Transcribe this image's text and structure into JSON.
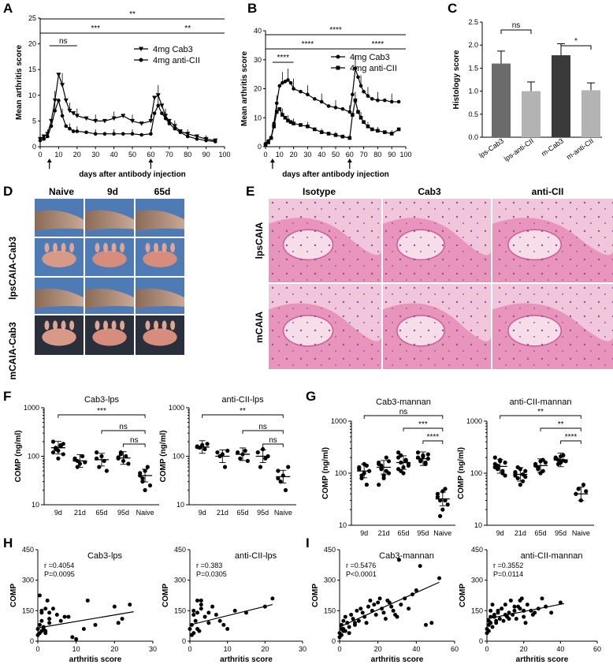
{
  "figure": {
    "panels": {
      "A": "A",
      "B": "B",
      "C": "C",
      "D": "D",
      "E": "E",
      "F": "F",
      "G": "G",
      "H": "H",
      "I": "I"
    }
  },
  "panelD": {
    "columns": [
      "Naive",
      "9d",
      "65d"
    ],
    "rows": [
      "lpsCAIA-Cab3",
      "mCAIA-Cab3"
    ]
  },
  "panelE": {
    "columns": [
      "Isotype",
      "Cab3",
      "anti-CII"
    ],
    "rows": [
      "lpsCAIA",
      "mCAIA"
    ]
  },
  "chart_data": [
    {
      "panel": "A",
      "type": "line",
      "ylabel": "Mean arthritis score",
      "xlabel": "days after antibody injection",
      "xlim": [
        0,
        100
      ],
      "ylim": [
        0,
        25
      ],
      "xticks": [
        0,
        10,
        20,
        30,
        40,
        50,
        60,
        70,
        80,
        90,
        100
      ],
      "yticks": [
        0,
        5,
        10,
        15,
        20,
        25
      ],
      "arrows_at": [
        5,
        60
      ],
      "series": [
        {
          "name": "4mg Cab3",
          "marker": "triangle-down",
          "x": [
            0,
            2,
            4,
            6,
            8,
            10,
            12,
            14,
            16,
            18,
            20,
            25,
            30,
            35,
            40,
            45,
            50,
            55,
            60,
            62,
            64,
            66,
            68,
            70,
            73,
            76,
            80,
            85,
            90,
            95
          ],
          "y": [
            1.5,
            2,
            2.5,
            5,
            9,
            14,
            12,
            9,
            7,
            6.5,
            6,
            5.5,
            5,
            5,
            5.5,
            6,
            5,
            4.5,
            5,
            9.5,
            10,
            8,
            6,
            5,
            4,
            3,
            2.5,
            2,
            1.5,
            1.2
          ]
        },
        {
          "name": "4mg anti-CII",
          "marker": "circle",
          "x": [
            0,
            2,
            4,
            6,
            8,
            10,
            12,
            14,
            16,
            18,
            20,
            25,
            30,
            35,
            40,
            45,
            50,
            55,
            60,
            62,
            64,
            66,
            68,
            70,
            73,
            76,
            80,
            85,
            90,
            95
          ],
          "y": [
            1.2,
            1.5,
            2,
            4,
            7,
            9,
            6,
            4,
            3.5,
            3,
            3,
            2.8,
            2.5,
            2.5,
            2.5,
            2.5,
            2.5,
            2.3,
            2.5,
            6.5,
            8,
            6.5,
            5.5,
            4.5,
            3.5,
            2.8,
            2,
            1.5,
            1.2,
            1
          ]
        }
      ],
      "significance": [
        "**",
        "***",
        "**",
        "ns"
      ]
    },
    {
      "panel": "B",
      "type": "line",
      "ylabel": "Mean arthritis score",
      "xlabel": "days after antibody injection",
      "xlim": [
        0,
        100
      ],
      "ylim": [
        0,
        40
      ],
      "xticks": [
        0,
        10,
        20,
        30,
        40,
        50,
        60,
        70,
        80,
        90,
        100
      ],
      "yticks": [
        0,
        10,
        20,
        30,
        40
      ],
      "arrows_at": [
        5,
        60
      ],
      "series": [
        {
          "name": "4mg Cab3",
          "marker": "circle",
          "x": [
            0,
            2,
            4,
            6,
            8,
            10,
            12,
            14,
            16,
            18,
            20,
            25,
            30,
            35,
            40,
            45,
            50,
            55,
            60,
            62,
            64,
            66,
            68,
            70,
            73,
            76,
            80,
            85,
            90,
            95
          ],
          "y": [
            1,
            2,
            3,
            8,
            15,
            21,
            22,
            22.5,
            23,
            22,
            20,
            19,
            18,
            16.5,
            15.5,
            14,
            13.5,
            13,
            12,
            18,
            27,
            24,
            21,
            19,
            17.5,
            16.5,
            16,
            16,
            15.5,
            15.5
          ]
        },
        {
          "name": "4mg anti-CII",
          "marker": "square",
          "x": [
            0,
            2,
            4,
            6,
            8,
            10,
            12,
            14,
            16,
            18,
            20,
            25,
            30,
            35,
            40,
            45,
            50,
            55,
            60,
            62,
            64,
            66,
            68,
            70,
            73,
            76,
            80,
            85,
            90,
            95
          ],
          "y": [
            0.8,
            1.5,
            3,
            7,
            12,
            13,
            11,
            10,
            9,
            8.5,
            8,
            7.5,
            7,
            6,
            5,
            4.5,
            4,
            3.5,
            3,
            11,
            16,
            12,
            10,
            8.5,
            7,
            6,
            5.5,
            5,
            4.5,
            6
          ]
        }
      ],
      "significance": [
        "****",
        "****",
        "****",
        "****"
      ]
    },
    {
      "panel": "C",
      "type": "bar",
      "ylabel": "Histology score",
      "ylim": [
        0,
        2.5
      ],
      "yticks": [
        0,
        0.5,
        1.0,
        1.5,
        2.0,
        2.5
      ],
      "yticklabels": [
        "0.0",
        "0.5",
        "1.0",
        "1.5",
        "2.0",
        "2.5"
      ],
      "categories": [
        "lps-Cab3",
        "lps-anti-CII",
        "m-Cab3",
        "m-anti-CII"
      ],
      "values": [
        1.6,
        1.0,
        1.78,
        1.02
      ],
      "errors": [
        0.27,
        0.2,
        0.25,
        0.16
      ],
      "significance": [
        "ns",
        "*"
      ]
    },
    {
      "panel": "F1",
      "type": "scatter",
      "title": "Cab3-lps",
      "ylabel": "COMP (ng/ml)",
      "yscale": "log",
      "ylim": [
        10,
        1000
      ],
      "yticklabels": [
        "10",
        "100",
        "1000"
      ],
      "categories": [
        "9d",
        "21d",
        "65d",
        "95d",
        "Naive"
      ],
      "values": [
        [
          200,
          150,
          130,
          160,
          180,
          120,
          140,
          90,
          170,
          110
        ],
        [
          90,
          80,
          70,
          100,
          75,
          85,
          60
        ],
        [
          90,
          60,
          100,
          80,
          50,
          120
        ],
        [
          90,
          110,
          80,
          100,
          70,
          95,
          120
        ],
        [
          40,
          30,
          50,
          60,
          25,
          45,
          35,
          20
        ]
      ],
      "means": [
        150,
        80,
        85,
        92,
        40
      ],
      "significance": [
        "***",
        "ns",
        "ns"
      ]
    },
    {
      "panel": "F2",
      "type": "scatter",
      "title": "anti-CII-lps",
      "ylabel": "COMP (ng/ml)",
      "yscale": "log",
      "ylim": [
        10,
        1000
      ],
      "yticklabels": [
        "10",
        "100",
        "1000"
      ],
      "categories": [
        "9d",
        "21d",
        "65d",
        "95d",
        "Naive"
      ],
      "values": [
        [
          160,
          150,
          170,
          140,
          180,
          155
        ],
        [
          120,
          100,
          110,
          60,
          130
        ],
        [
          120,
          90,
          110,
          130,
          80
        ],
        [
          120,
          60,
          140,
          90,
          100
        ],
        [
          50,
          30,
          40,
          20,
          60,
          35
        ]
      ],
      "means": [
        155,
        100,
        110,
        100,
        38
      ],
      "significance": [
        "**",
        "ns",
        "ns"
      ]
    },
    {
      "panel": "G1",
      "type": "scatter",
      "title": "Cab3-mannan",
      "ylabel": "COMP (ng/ml)",
      "yscale": "log",
      "ylim": [
        10,
        1000
      ],
      "yticklabels": [
        "10",
        "100",
        "1000"
      ],
      "categories": [
        "9d",
        "21d",
        "65d",
        "95d",
        "Naive"
      ],
      "values": [
        [
          120,
          90,
          150,
          60,
          110,
          130,
          80,
          100,
          140
        ],
        [
          150,
          120,
          90,
          200,
          100,
          160,
          130,
          80,
          110,
          170,
          60,
          140
        ],
        [
          200,
          160,
          130,
          180,
          150,
          120,
          220,
          100,
          170,
          140,
          250,
          110
        ],
        [
          200,
          180,
          220,
          160,
          190,
          250,
          170,
          210,
          150,
          230
        ],
        [
          40,
          30,
          20,
          50,
          25,
          35,
          15,
          45,
          30
        ]
      ],
      "means": [
        110,
        130,
        160,
        190,
        32
      ],
      "significance": [
        "ns",
        "***",
        "****"
      ]
    },
    {
      "panel": "G2",
      "type": "scatter",
      "title": "anti-CII-mannan",
      "ylabel": "COMP (ng/ml)",
      "yscale": "log",
      "ylim": [
        10,
        1000
      ],
      "yticklabels": [
        "10",
        "100",
        "1000"
      ],
      "categories": [
        "9d",
        "21d",
        "65d",
        "95d",
        "Naive"
      ],
      "values": [
        [
          150,
          120,
          180,
          100,
          160,
          130,
          140,
          170,
          110,
          90,
          200,
          125
        ],
        [
          100,
          80,
          120,
          70,
          110,
          90,
          130,
          60,
          95,
          85,
          105
        ],
        [
          150,
          130,
          170,
          110,
          160,
          140,
          120,
          100,
          180
        ],
        [
          200,
          180,
          160,
          220,
          170,
          190,
          150,
          210,
          175
        ],
        [
          40,
          50,
          30,
          60,
          45
        ]
      ],
      "means": [
        135,
        95,
        140,
        180,
        40
      ],
      "significance": [
        "**",
        "**",
        "****"
      ]
    },
    {
      "panel": "H1",
      "type": "scatter",
      "title": "Cab3-lps",
      "ylabel": "COMP",
      "xlabel": "arthritis score",
      "xlim": [
        0,
        30
      ],
      "ylim": [
        0,
        450
      ],
      "xticks": [
        0,
        10,
        20,
        30
      ],
      "yticks": [
        0,
        150,
        300,
        450
      ],
      "stat_r": "r =0.4054",
      "stat_p": "P=0.0095",
      "x": [
        0,
        0.5,
        1,
        1,
        1.5,
        2,
        2,
        2.5,
        3,
        3,
        0,
        0.5,
        1,
        1.5,
        2,
        5,
        6,
        8,
        9,
        10,
        12,
        13,
        15,
        20,
        21,
        22,
        24,
        0.5,
        1,
        3,
        4,
        7
      ],
      "y": [
        60,
        80,
        100,
        140,
        70,
        50,
        160,
        200,
        90,
        110,
        30,
        40,
        50,
        60,
        40,
        130,
        100,
        120,
        20,
        10,
        60,
        200,
        80,
        170,
        90,
        110,
        180,
        225,
        150,
        140,
        160,
        120
      ],
      "fit": [
        [
          0,
          65
        ],
        [
          25,
          145
        ]
      ]
    },
    {
      "panel": "H2",
      "type": "scatter",
      "title": "anti-CII-lps",
      "ylabel": "COMP",
      "xlabel": "arthritis score",
      "xlim": [
        0,
        30
      ],
      "ylim": [
        0,
        450
      ],
      "xticks": [
        0,
        10,
        20,
        30
      ],
      "yticks": [
        0,
        150,
        300,
        450
      ],
      "stat_r": "r =0.383",
      "stat_p": "P=0.0305",
      "x": [
        0,
        0.5,
        1,
        1,
        1.5,
        2,
        2,
        2.5,
        3,
        3,
        4,
        5,
        5,
        6,
        7,
        8,
        9,
        10,
        12,
        0.5,
        1,
        2,
        3,
        15,
        20,
        22
      ],
      "y": [
        60,
        80,
        150,
        130,
        100,
        140,
        60,
        50,
        200,
        160,
        120,
        140,
        90,
        170,
        130,
        100,
        80,
        60,
        150,
        30,
        40,
        200,
        180,
        140,
        170,
        210
      ],
      "fit": [
        [
          0,
          80
        ],
        [
          22,
          180
        ]
      ]
    },
    {
      "panel": "I1",
      "type": "scatter",
      "title": "Cab3-mannan",
      "ylabel": "COMP",
      "xlabel": "arthritis score",
      "xlim": [
        0,
        60
      ],
      "ylim": [
        0,
        450
      ],
      "xticks": [
        0,
        20,
        40,
        60
      ],
      "yticks": [
        0,
        150,
        300,
        450
      ],
      "stat_r": "r =0.5476",
      "stat_p": "P<0.0001",
      "x": [
        0,
        1,
        1,
        2,
        2,
        3,
        4,
        5,
        6,
        7,
        8,
        9,
        10,
        11,
        12,
        13,
        14,
        15,
        16,
        17,
        18,
        19,
        20,
        21,
        22,
        23,
        24,
        25,
        26,
        27,
        28,
        29,
        30,
        31,
        32,
        34,
        36,
        38,
        40,
        42,
        45,
        48,
        52,
        0,
        1,
        2,
        3,
        5,
        8,
        10
      ],
      "y": [
        40,
        60,
        80,
        100,
        50,
        120,
        90,
        70,
        130,
        110,
        80,
        150,
        100,
        160,
        140,
        120,
        90,
        170,
        200,
        150,
        180,
        130,
        190,
        210,
        160,
        140,
        110,
        200,
        190,
        170,
        150,
        130,
        120,
        400,
        180,
        210,
        160,
        230,
        250,
        370,
        80,
        90,
        310,
        20,
        30,
        60,
        50,
        40,
        90,
        100
      ],
      "fit": [
        [
          0,
          70
        ],
        [
          52,
          290
        ]
      ]
    },
    {
      "panel": "I2",
      "type": "scatter",
      "title": "anti-CII-mannan",
      "ylabel": "COMP",
      "xlabel": "arthritis score",
      "xlim": [
        0,
        60
      ],
      "ylim": [
        0,
        450
      ],
      "xticks": [
        0,
        20,
        40,
        60
      ],
      "yticks": [
        0,
        150,
        300,
        450
      ],
      "stat_r": "r =0.3552",
      "stat_p": "P=0.0114",
      "x": [
        0,
        1,
        1,
        2,
        2,
        3,
        4,
        5,
        6,
        7,
        8,
        9,
        10,
        11,
        12,
        13,
        14,
        15,
        16,
        17,
        18,
        19,
        20,
        21,
        22,
        24,
        26,
        28,
        30,
        32,
        35,
        40,
        0,
        1,
        2,
        3,
        4,
        5,
        6,
        8,
        10,
        12,
        15,
        18,
        20,
        25
      ],
      "y": [
        60,
        80,
        100,
        120,
        150,
        70,
        130,
        90,
        140,
        110,
        160,
        100,
        180,
        120,
        140,
        200,
        130,
        150,
        110,
        170,
        160,
        210,
        120,
        90,
        180,
        150,
        140,
        160,
        210,
        170,
        140,
        190,
        40,
        50,
        90,
        180,
        120,
        100,
        150,
        160,
        130,
        110,
        170,
        200,
        150,
        130
      ],
      "fit": [
        [
          0,
          110
        ],
        [
          42,
          185
        ]
      ]
    }
  ]
}
